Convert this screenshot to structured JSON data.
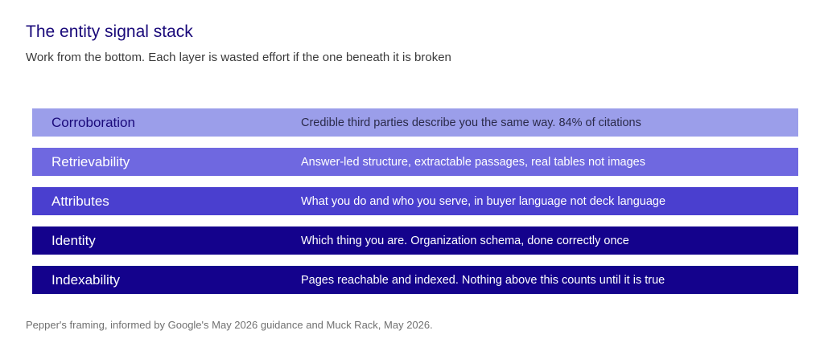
{
  "header": {
    "title": "The entity signal stack",
    "subtitle": "Work from the bottom. Each layer is wasted effort if the one beneath it is broken"
  },
  "layers": [
    {
      "name": "Corroboration",
      "description": "Credible third parties describe you the same way. 84% of citations",
      "background": "#9b9eea",
      "name_color": "#1a0a7a",
      "desc_color": "#2a2a4a"
    },
    {
      "name": "Retrievability",
      "description": "Answer-led structure, extractable passages, real tables not images",
      "background": "#6f68e0",
      "name_color": "#ffffff",
      "desc_color": "#ffffff"
    },
    {
      "name": "Attributes",
      "description": "What you do and who you serve, in buyer language not deck language",
      "background": "#4a3fcf",
      "name_color": "#ffffff",
      "desc_color": "#ffffff"
    },
    {
      "name": "Identity",
      "description": "Which thing you are. Organization schema, done correctly once",
      "background": "#14028c",
      "name_color": "#ffffff",
      "desc_color": "#ffffff"
    },
    {
      "name": "Indexability",
      "description": "Pages reachable and indexed. Nothing above this counts until it is true",
      "background": "#14028c",
      "name_color": "#ffffff",
      "desc_color": "#ffffff"
    }
  ],
  "footer": {
    "source": "Pepper's framing, informed by Google's May 2026 guidance and Muck Rack, May 2026."
  }
}
